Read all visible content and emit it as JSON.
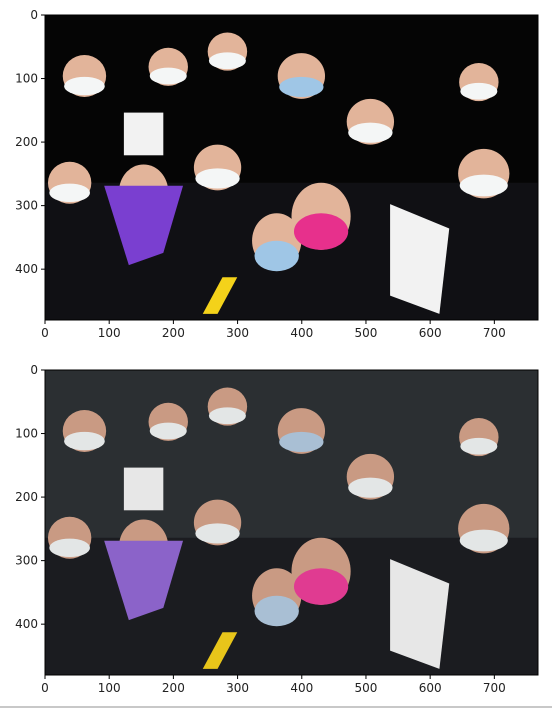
{
  "panels": [
    {
      "name": "top",
      "image_label": "High-contrast photo of masked protesters in a crowd",
      "x_ticks": [
        "0",
        "100",
        "200",
        "300",
        "400",
        "500",
        "600",
        "700"
      ],
      "y_ticks": [
        "0",
        "100",
        "200",
        "300",
        "400"
      ],
      "x_tick_values": [
        0,
        100,
        200,
        300,
        400,
        500,
        600,
        700
      ],
      "y_tick_values": [
        0,
        100,
        200,
        300,
        400
      ],
      "xlim": [
        0,
        768
      ],
      "ylim": [
        480,
        0
      ],
      "palette": {
        "bg": "#050505",
        "dark": "#101014",
        "skin": "#e2b49a",
        "mask_white": "#f4f6f6",
        "mask_blue": "#9fc6e6",
        "bandana": "#7a3fd0",
        "mask_pink": "#e7308c",
        "sign": "#f2f2f2",
        "yellow": "#f4d21a"
      }
    },
    {
      "name": "bottom",
      "image_label": "Natural-color photo of masked protesters in a crowd",
      "x_ticks": [
        "0",
        "100",
        "200",
        "300",
        "400",
        "500",
        "600",
        "700"
      ],
      "y_ticks": [
        "0",
        "100",
        "200",
        "300",
        "400"
      ],
      "x_tick_values": [
        0,
        100,
        200,
        300,
        400,
        500,
        600,
        700
      ],
      "y_tick_values": [
        0,
        100,
        200,
        300,
        400
      ],
      "xlim": [
        0,
        768
      ],
      "ylim": [
        480,
        0
      ],
      "palette": {
        "bg": "#2b2f32",
        "dark": "#1b1c20",
        "skin": "#c99a83",
        "mask_white": "#e3e6e6",
        "mask_blue": "#a9bfd4",
        "bandana": "#8b63c9",
        "mask_pink": "#e03b91",
        "sign": "#e7e7e7",
        "yellow": "#e8c51a"
      }
    }
  ]
}
